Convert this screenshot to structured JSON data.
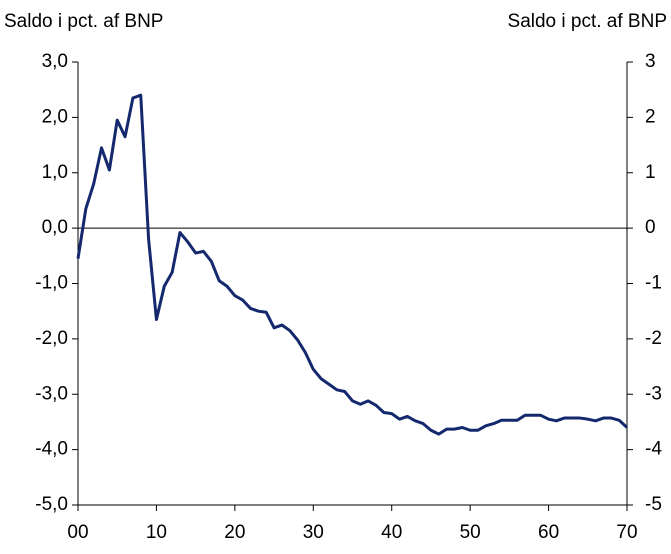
{
  "chart_data": {
    "type": "line",
    "y_label": "Saldo i pct. af BNP",
    "y2_label": "Saldo i pct. af BNP",
    "x": [
      0,
      1,
      2,
      3,
      4,
      5,
      6,
      7,
      8,
      9,
      10,
      11,
      12,
      13,
      14,
      15,
      16,
      17,
      18,
      19,
      20,
      21,
      22,
      23,
      24,
      25,
      26,
      27,
      28,
      29,
      30,
      31,
      32,
      33,
      34,
      35,
      36,
      37,
      38,
      39,
      40,
      41,
      42,
      43,
      44,
      45,
      46,
      47,
      48,
      49,
      50,
      51,
      52,
      53,
      54,
      55,
      56,
      57,
      58,
      59,
      60,
      61,
      62,
      63,
      64,
      65,
      66,
      67,
      68,
      69,
      70
    ],
    "series": [
      {
        "name": "Saldo",
        "color": "#14286e",
        "values": [
          -0.55,
          0.35,
          0.8,
          1.45,
          1.05,
          1.95,
          1.65,
          2.35,
          2.4,
          -0.2,
          -1.65,
          -1.05,
          -0.8,
          -0.08,
          -0.25,
          -0.45,
          -0.42,
          -0.6,
          -0.95,
          -1.05,
          -1.22,
          -1.3,
          -1.45,
          -1.5,
          -1.52,
          -1.8,
          -1.75,
          -1.85,
          -2.02,
          -2.25,
          -2.55,
          -2.72,
          -2.82,
          -2.92,
          -2.95,
          -3.12,
          -3.18,
          -3.12,
          -3.2,
          -3.33,
          -3.35,
          -3.45,
          -3.4,
          -3.48,
          -3.53,
          -3.65,
          -3.72,
          -3.63,
          -3.63,
          -3.6,
          -3.65,
          -3.65,
          -3.57,
          -3.53,
          -3.47,
          -3.47,
          -3.47,
          -3.38,
          -3.38,
          -3.38,
          -3.45,
          -3.48,
          -3.43,
          -3.43,
          -3.43,
          -3.45,
          -3.48,
          -3.43,
          -3.43,
          -3.47,
          -3.6
        ]
      }
    ],
    "xlim": [
      0,
      70
    ],
    "xticks": [
      {
        "value": 0,
        "label": "00"
      },
      10,
      20,
      30,
      40,
      50,
      60,
      70
    ],
    "ylim": [
      -5,
      3
    ],
    "yticks": [
      {
        "value": 3,
        "label": "3,0"
      },
      {
        "value": 2,
        "label": "2,0"
      },
      {
        "value": 1,
        "label": "1,0"
      },
      {
        "value": 0,
        "label": "0,0"
      },
      {
        "value": -1,
        "label": "-1,0"
      },
      {
        "value": -2,
        "label": "-2,0"
      },
      {
        "value": -3,
        "label": "-3,0"
      },
      {
        "value": -4,
        "label": "-4,0"
      },
      {
        "value": -5,
        "label": "-5,0"
      }
    ],
    "y2lim": [
      -5,
      3
    ],
    "y2ticks": [
      3,
      2,
      1,
      0,
      -1,
      -2,
      -3,
      -4,
      -5
    ]
  }
}
